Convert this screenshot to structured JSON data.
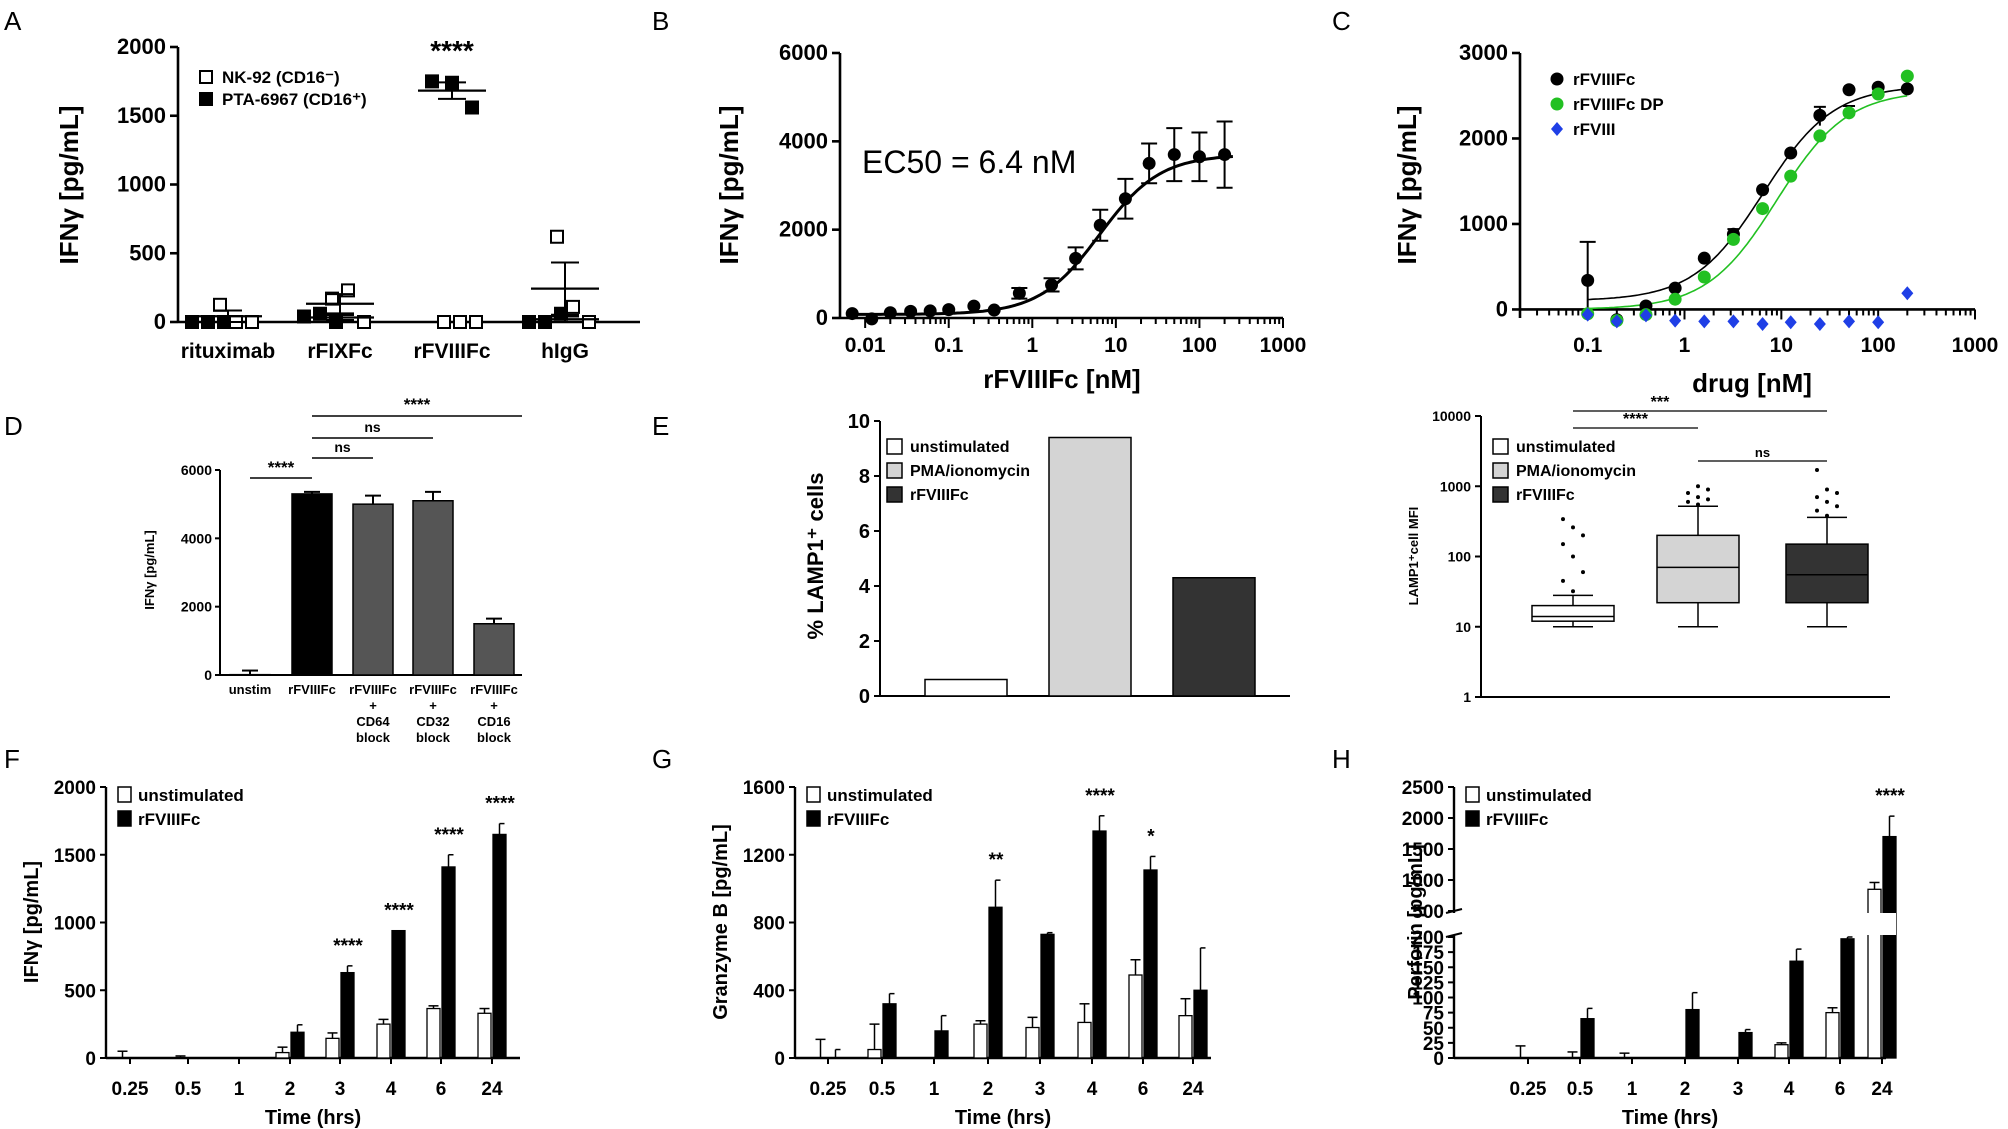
{
  "panels": {
    "A": "A",
    "B": "B",
    "C": "C",
    "D": "D",
    "E": "E",
    "F": "F",
    "G": "G",
    "H": "H"
  },
  "chart_data": [
    {
      "panel": "A",
      "type": "scatter",
      "ylabel": "IFNγ [pg/mL]",
      "ylim": [
        0,
        2000
      ],
      "yticks": [
        0,
        500,
        1000,
        1500,
        2000
      ],
      "categories": [
        "rituximab",
        "rFIXFc",
        "rFVIIIFc",
        "hIgG"
      ],
      "series": [
        {
          "name": "NK-92 (CD16⁻)",
          "values": [
            [
              125,
              0,
              0
            ],
            [
              170,
              230,
              0
            ],
            [
              0,
              0,
              0
            ],
            [
              620,
              110,
              0
            ]
          ],
          "means": [
            42,
            133,
            0,
            243
          ],
          "sem": [
            42,
            70,
            0,
            190
          ]
        },
        {
          "name": "PTA-6967 (CD16⁺)",
          "values": [
            [
              0,
              0,
              0
            ],
            [
              40,
              60,
              0
            ],
            [
              1750,
              1740,
              1560
            ],
            [
              0,
              0,
              60
            ]
          ],
          "means": [
            0,
            33,
            1683,
            20
          ],
          "sem": [
            0,
            18,
            60,
            20
          ]
        }
      ],
      "annotation": "****"
    },
    {
      "panel": "B",
      "type": "scatter",
      "xlabel": "rFVIIIFc [nM]",
      "ylabel": "IFNγ [pg/mL]",
      "xscale": "log",
      "xlim": [
        0.005,
        1000
      ],
      "ylim": [
        0,
        6000
      ],
      "xticks": [
        "0.01",
        "0.1",
        "1",
        "10",
        "100",
        "1000"
      ],
      "yticks": [
        0,
        2000,
        4000,
        6000
      ],
      "x": [
        0.007,
        0.012,
        0.02,
        0.035,
        0.06,
        0.1,
        0.2,
        0.35,
        0.7,
        1.7,
        3.3,
        6.5,
        13,
        25,
        50,
        100,
        200
      ],
      "y": [
        100,
        -20,
        120,
        150,
        160,
        190,
        270,
        180,
        560,
        750,
        1350,
        2100,
        2700,
        3500,
        3700,
        3650,
        3700
      ],
      "err": [
        0,
        0,
        0,
        0,
        0,
        0,
        0,
        0,
        120,
        150,
        250,
        350,
        450,
        450,
        600,
        550,
        750
      ],
      "fit": {
        "bottom": 80,
        "top": 3700,
        "ec50": 6.4,
        "hill": 1.2
      },
      "annotation": "EC50 = 6.4 nM"
    },
    {
      "panel": "C",
      "type": "scatter",
      "xlabel": "drug [nM]",
      "ylabel": "IFNγ [pg/mL]",
      "xscale": "log",
      "xlim": [
        0.02,
        1000
      ],
      "ylim": [
        -100,
        3000
      ],
      "xticks": [
        "0.1",
        "1",
        "10",
        "100",
        "1000"
      ],
      "yticks": [
        0,
        1000,
        2000,
        3000
      ],
      "x": [
        0.1,
        0.2,
        0.4,
        0.8,
        1.6,
        3.2,
        6.4,
        12.5,
        25,
        50,
        100,
        200
      ],
      "series": [
        {
          "name": "rFVIIIFc",
          "values": [
            340,
            -120,
            40,
            250,
            600,
            880,
            1400,
            1830,
            2270,
            2570,
            2600,
            2580
          ],
          "fit": {
            "bottom": 100,
            "top": 2620,
            "ec50": 6.5,
            "hill": 1.2
          }
        },
        {
          "name": "rFVIIIFc DP",
          "values": [
            -50,
            -130,
            -60,
            120,
            380,
            820,
            1180,
            1560,
            2030,
            2300,
            2520,
            2730
          ],
          "fit": {
            "bottom": 0,
            "top": 2560,
            "ec50": 9,
            "hill": 1.2
          }
        },
        {
          "name": "rFVIII",
          "values": [
            -60,
            -140,
            -70,
            -130,
            -140,
            -140,
            -170,
            -150,
            -170,
            -140,
            -150,
            190
          ]
        }
      ]
    },
    {
      "panel": "D",
      "type": "bar",
      "ylabel": "IFNγ [pg/mL]",
      "ylim": [
        0,
        6000
      ],
      "yticks": [
        0,
        2000,
        4000,
        6000
      ],
      "categories": [
        "unstim",
        "rFVIIIFc",
        "rFVIIIFc + CD64 block",
        "rFVIIIFc + CD32 block",
        "rFVIIIFc + CD16 block"
      ],
      "values": [
        10,
        5300,
        5000,
        5100,
        1500
      ],
      "err": [
        120,
        60,
        250,
        260,
        150
      ],
      "comparisons": [
        {
          "from": "unstim",
          "to": "rFVIIIFc",
          "label": "****"
        },
        {
          "from": "rFVIIIFc",
          "to": "rFVIIIFc + CD64 block",
          "label": "ns"
        },
        {
          "from": "rFVIIIFc",
          "to": "rFVIIIFc + CD32 block",
          "label": "ns"
        },
        {
          "from": "rFVIIIFc",
          "to": "rFVIIIFc + CD16 block",
          "label": "****"
        }
      ]
    },
    {
      "panel": "E",
      "type": "bar",
      "ylabel": "% LAMP1⁺ cells",
      "ylim": [
        0,
        10
      ],
      "yticks": [
        0,
        2,
        4,
        6,
        8,
        10
      ],
      "categories": [
        "unstimulated",
        "PMA/ionomycin",
        "rFVIIIFc"
      ],
      "values": [
        0.6,
        9.4,
        4.3
      ]
    },
    {
      "panel": "E2",
      "type": "box",
      "ylabel": "LAMP1⁺cell MFI",
      "yscale": "log",
      "ylim": [
        1,
        10000
      ],
      "yticks": [
        "1",
        "10",
        "100",
        "1000",
        "10000"
      ],
      "categories": [
        "unstimulated",
        "PMA/ionomycin",
        "rFVIIIFc"
      ],
      "boxes": [
        {
          "min": 10,
          "q1": 12,
          "median": 14,
          "q3": 20,
          "max": 28,
          "outliers": [
            32,
            45,
            60,
            100,
            150,
            200,
            260,
            340
          ]
        },
        {
          "min": 10,
          "q1": 22,
          "median": 70,
          "q3": 200,
          "max": 520,
          "outliers": [
            550,
            600,
            650,
            700,
            800,
            900,
            1000
          ]
        },
        {
          "min": 10,
          "q1": 22,
          "median": 55,
          "q3": 150,
          "max": 360,
          "outliers": [
            380,
            450,
            520,
            600,
            700,
            800,
            900,
            1700
          ]
        }
      ],
      "comparisons": [
        {
          "from": "unstimulated",
          "to": "PMA/ionomycin",
          "label": "****"
        },
        {
          "from": "unstimulated",
          "to": "rFVIIIFc",
          "label": "***"
        },
        {
          "from": "PMA/ionomycin",
          "to": "rFVIIIFc",
          "label": "ns"
        }
      ]
    },
    {
      "panel": "F",
      "type": "bar",
      "xlabel": "Time (hrs)",
      "ylabel": "IFNγ [pg/mL]",
      "ylim": [
        0,
        2000
      ],
      "yticks": [
        0,
        500,
        1000,
        1500,
        2000
      ],
      "categories": [
        "0.25",
        "0.5",
        "1",
        "2",
        "3",
        "4",
        "6",
        "24"
      ],
      "series": [
        {
          "name": "unstimulated",
          "values": [
            0,
            0,
            0,
            40,
            145,
            250,
            365,
            330
          ],
          "err": [
            50,
            15,
            0,
            40,
            40,
            35,
            20,
            35
          ]
        },
        {
          "name": "rFVIIIFc",
          "values": [
            0,
            0,
            0,
            190,
            630,
            940,
            1410,
            1650
          ],
          "err": [
            0,
            0,
            0,
            55,
            50,
            0,
            90,
            80
          ]
        }
      ],
      "annotations": [
        "",
        "",
        "",
        "",
        "****",
        "****",
        "****",
        "****"
      ]
    },
    {
      "panel": "G",
      "type": "bar",
      "xlabel": "Time (hrs)",
      "ylabel": "Granzyme B [pg/mL]",
      "ylim": [
        0,
        1600
      ],
      "yticks": [
        0,
        400,
        800,
        1200,
        1600
      ],
      "categories": [
        "0.25",
        "0.5",
        "1",
        "2",
        "3",
        "4",
        "6",
        "24"
      ],
      "series": [
        {
          "name": "unstimulated",
          "values": [
            0,
            50,
            0,
            200,
            180,
            210,
            490,
            250
          ],
          "err": [
            110,
            150,
            0,
            20,
            60,
            110,
            90,
            100
          ]
        },
        {
          "name": "rFVIIIFc",
          "values": [
            0,
            320,
            160,
            890,
            730,
            1340,
            1110,
            400
          ],
          "err": [
            50,
            60,
            90,
            160,
            10,
            90,
            80,
            250
          ]
        }
      ],
      "annotations": [
        "",
        "",
        "",
        "**",
        "",
        "****",
        "*",
        ""
      ]
    },
    {
      "panel": "H",
      "type": "bar",
      "xlabel": "Time (hrs)",
      "ylabel": "Perforin [pg/mL]",
      "ylim": [
        0,
        2500
      ],
      "axis_break": [
        200,
        500
      ],
      "yticks": [
        "0",
        "25",
        "50",
        "75",
        "100",
        "125",
        "150",
        "175",
        "200",
        "500",
        "1000",
        "1500",
        "2000",
        "2500"
      ],
      "categories": [
        "0.25",
        "0.5",
        "1",
        "2",
        "3",
        "4",
        "6",
        "24"
      ],
      "series": [
        {
          "name": "unstimulated",
          "values": [
            0,
            0,
            0,
            0,
            0,
            22,
            75,
            850
          ],
          "err": [
            20,
            10,
            8,
            0,
            0,
            3,
            8,
            110
          ]
        },
        {
          "name": "rFVIIIFc",
          "values": [
            0,
            65,
            0,
            80,
            42,
            160,
            197,
            1700
          ],
          "err": [
            0,
            17,
            0,
            28,
            5,
            20,
            3,
            330
          ]
        }
      ],
      "annotations": [
        "",
        "",
        "",
        "",
        "",
        "",
        "",
        "****"
      ]
    }
  ]
}
